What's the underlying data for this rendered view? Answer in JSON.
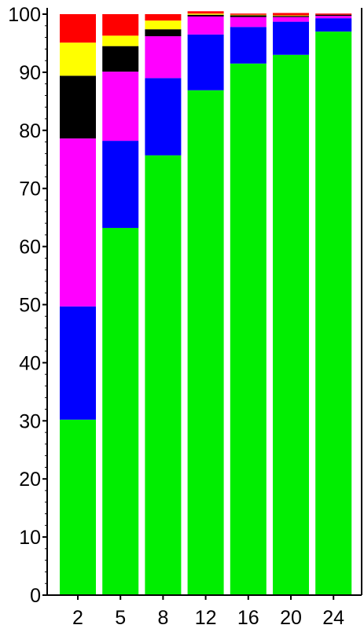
{
  "chart_data": {
    "type": "bar",
    "stacked": true,
    "title": "",
    "xlabel": "",
    "ylabel": "",
    "categories": [
      "2",
      "5",
      "8",
      "12",
      "16",
      "20",
      "24"
    ],
    "ylim": [
      0,
      100
    ],
    "yticks": [
      "0",
      "10",
      "20",
      "30",
      "40",
      "50",
      "60",
      "70",
      "80",
      "90",
      "100"
    ],
    "grid": false,
    "legend": "none",
    "series": [
      {
        "color": "#00ee00",
        "values": [
          30.2,
          63.2,
          75.7,
          86.9,
          91.5,
          93.0,
          97.0
        ]
      },
      {
        "color": "#0000ff",
        "values": [
          19.5,
          15.0,
          13.3,
          9.6,
          6.3,
          5.7,
          2.3
        ]
      },
      {
        "color": "#ff00ff",
        "values": [
          28.9,
          11.9,
          7.2,
          3.1,
          1.7,
          0.8,
          0.4
        ]
      },
      {
        "color": "#000000",
        "values": [
          10.8,
          4.4,
          1.2,
          0.3,
          0.3,
          0.2,
          0.2
        ]
      },
      {
        "color": "#ffff00",
        "values": [
          5.7,
          1.8,
          1.5,
          0.2,
          0.1,
          0.1,
          0.0
        ]
      },
      {
        "color": "#ff0000",
        "values": [
          4.9,
          3.7,
          1.1,
          0.4,
          0.2,
          0.4,
          0.2
        ]
      }
    ]
  }
}
